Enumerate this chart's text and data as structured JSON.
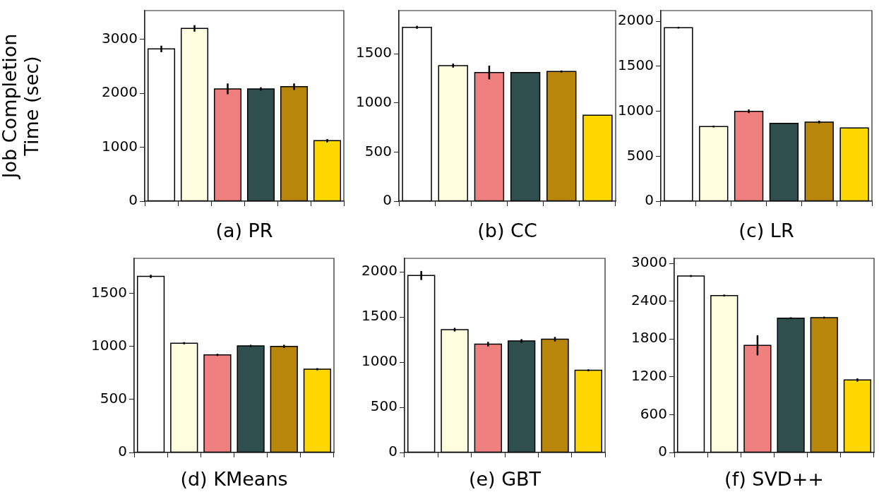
{
  "chart_data": [
    {
      "type": "bar",
      "xlabel": "(a) PR",
      "ylabel": "Job Completion\nTime (sec)",
      "categories": [
        null,
        null,
        null,
        null,
        null,
        null
      ],
      "values": [
        2820,
        3200,
        2080,
        2080,
        2120,
        1120
      ],
      "errors": [
        60,
        60,
        100,
        30,
        60,
        30
      ],
      "colors": [
        "#ffffff",
        "#ffffe0",
        "#f08080",
        "#2f4f4f",
        "#b8860b",
        "#ffd700"
      ],
      "ylim": [
        0,
        3530
      ],
      "yticks": [
        0,
        1000,
        2000,
        3000
      ],
      "grid": false,
      "legend": false
    },
    {
      "type": "bar",
      "xlabel": "(b) CC",
      "categories": [
        null,
        null,
        null,
        null,
        null,
        null
      ],
      "values": [
        1770,
        1380,
        1310,
        1310,
        1320,
        875
      ],
      "errors": [
        15,
        20,
        70,
        null,
        10,
        null
      ],
      "colors": [
        "#ffffff",
        "#ffffe0",
        "#f08080",
        "#2f4f4f",
        "#b8860b",
        "#ffd700"
      ],
      "ylim": [
        0,
        1940
      ],
      "yticks": [
        0,
        500,
        1000,
        1500
      ],
      "grid": false,
      "legend": false
    },
    {
      "type": "bar",
      "xlabel": "(c) LR",
      "categories": [
        null,
        null,
        null,
        null,
        null,
        null
      ],
      "values": [
        1930,
        830,
        1000,
        865,
        880,
        815
      ],
      "errors": [
        10,
        10,
        20,
        null,
        15,
        null
      ],
      "colors": [
        "#ffffff",
        "#ffffe0",
        "#f08080",
        "#2f4f4f",
        "#b8860b",
        "#ffd700"
      ],
      "ylim": [
        0,
        2120
      ],
      "yticks": [
        0,
        500,
        1000,
        1500,
        2000
      ],
      "grid": false,
      "legend": false
    },
    {
      "type": "bar",
      "xlabel": "(d) KMeans",
      "categories": [
        null,
        null,
        null,
        null,
        null,
        null
      ],
      "values": [
        1660,
        1030,
        920,
        1005,
        1000,
        785
      ],
      "errors": [
        15,
        10,
        10,
        10,
        15,
        10
      ],
      "colors": [
        "#ffffff",
        "#ffffe0",
        "#f08080",
        "#2f4f4f",
        "#b8860b",
        "#ffd700"
      ],
      "ylim": [
        0,
        1830
      ],
      "yticks": [
        0,
        500,
        1000,
        1500
      ],
      "grid": false,
      "legend": false
    },
    {
      "type": "bar",
      "xlabel": "(e) GBT",
      "categories": [
        null,
        null,
        null,
        null,
        null,
        null
      ],
      "values": [
        1960,
        1360,
        1200,
        1235,
        1255,
        910
      ],
      "errors": [
        50,
        20,
        25,
        20,
        25,
        10
      ],
      "colors": [
        "#ffffff",
        "#ffffe0",
        "#f08080",
        "#2f4f4f",
        "#b8860b",
        "#ffd700"
      ],
      "ylim": [
        0,
        2150
      ],
      "yticks": [
        0,
        500,
        1000,
        1500,
        2000
      ],
      "grid": false,
      "legend": false
    },
    {
      "type": "bar",
      "xlabel": "(f) SVD++",
      "categories": [
        null,
        null,
        null,
        null,
        null,
        null
      ],
      "values": [
        2800,
        2490,
        1700,
        2130,
        2140,
        1150
      ],
      "errors": [
        15,
        15,
        160,
        15,
        15,
        25
      ],
      "colors": [
        "#ffffff",
        "#ffffe0",
        "#f08080",
        "#2f4f4f",
        "#b8860b",
        "#ffd700"
      ],
      "ylim": [
        0,
        3080
      ],
      "yticks": [
        0,
        600,
        1200,
        1800,
        2400,
        3000
      ],
      "grid": false,
      "legend": false
    }
  ]
}
